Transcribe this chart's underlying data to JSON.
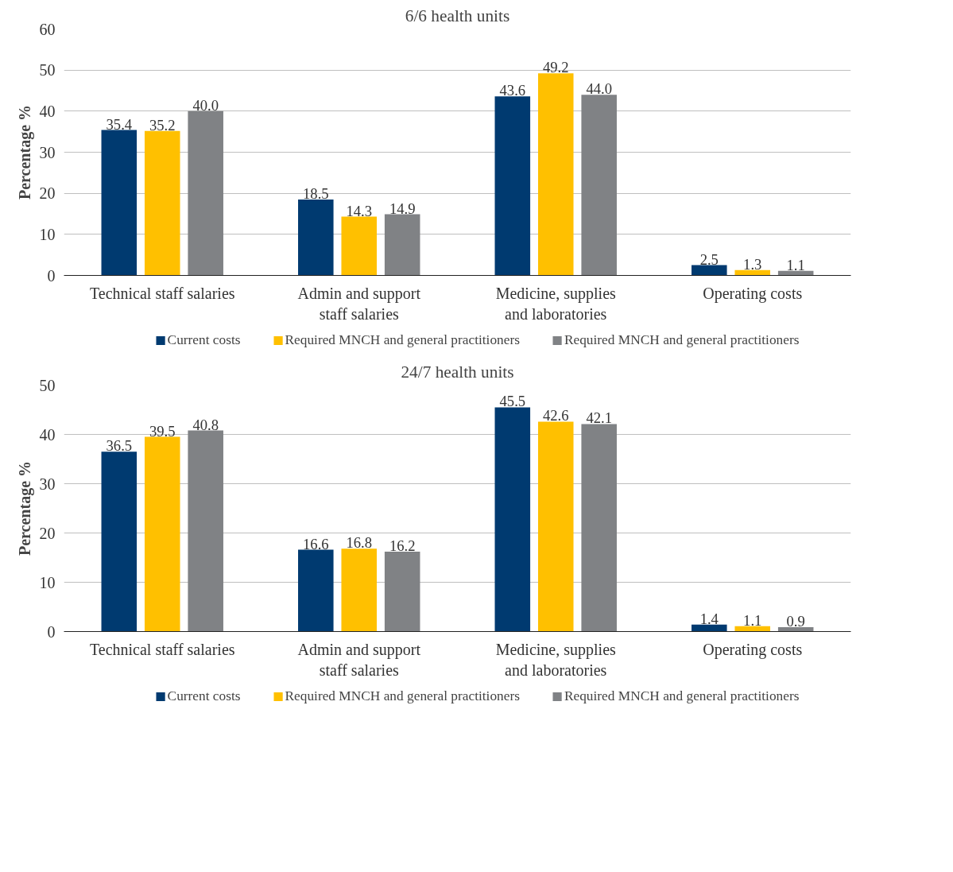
{
  "chart_data": [
    {
      "type": "bar",
      "title": "6/6 health units",
      "ylabel": "Percentage %",
      "categories": [
        "Technical staff salaries",
        "Admin and support\nstaff salaries",
        "Medicine, supplies\nand laboratories",
        "Operating costs"
      ],
      "series": [
        {
          "name": "Current costs",
          "color": "#003a70",
          "values": [
            35.4,
            18.5,
            43.6,
            2.5
          ]
        },
        {
          "name": "Required MNCH and general practitioners",
          "color": "#ffc000",
          "values": [
            35.2,
            14.3,
            49.2,
            1.3
          ]
        },
        {
          "name": "Required MNCH and general practitioners",
          "color": "#808285",
          "values": [
            40.0,
            14.9,
            44.0,
            1.1
          ]
        }
      ],
      "value_labels": [
        [
          "35.4",
          "18.5",
          "43.6",
          "2.5"
        ],
        [
          "35.2",
          "14.3",
          "49.2",
          "1.3"
        ],
        [
          "40.0",
          "14.9",
          "44.0",
          "1.1"
        ]
      ],
      "ylim": [
        0,
        60
      ],
      "yticks": [
        0,
        10,
        20,
        30,
        40,
        50,
        60
      ],
      "grid": "y",
      "legend": "bottom"
    },
    {
      "type": "bar",
      "title": "24/7 health units",
      "ylabel": "Percentage %",
      "categories": [
        "Technical staff salaries",
        "Admin and support\nstaff salaries",
        "Medicine, supplies\nand laboratories",
        "Operating costs"
      ],
      "series": [
        {
          "name": "Current costs",
          "color": "#003a70",
          "values": [
            36.5,
            16.6,
            45.5,
            1.4
          ]
        },
        {
          "name": "Required MNCH and general practitioners",
          "color": "#ffc000",
          "values": [
            39.5,
            16.8,
            42.6,
            1.1
          ]
        },
        {
          "name": "Required MNCH and general practitioners",
          "color": "#808285",
          "values": [
            40.8,
            16.2,
            42.1,
            0.9
          ]
        }
      ],
      "value_labels": [
        [
          "36.5",
          "16.6",
          "45.5",
          "1.4"
        ],
        [
          "39.5",
          "16.8",
          "42.6",
          "1.1"
        ],
        [
          "40.8",
          "16.2",
          "42.1",
          "0.9"
        ]
      ],
      "ylim": [
        0,
        50
      ],
      "yticks": [
        0,
        10,
        20,
        30,
        40,
        50
      ],
      "grid": "y",
      "legend": "bottom"
    }
  ]
}
